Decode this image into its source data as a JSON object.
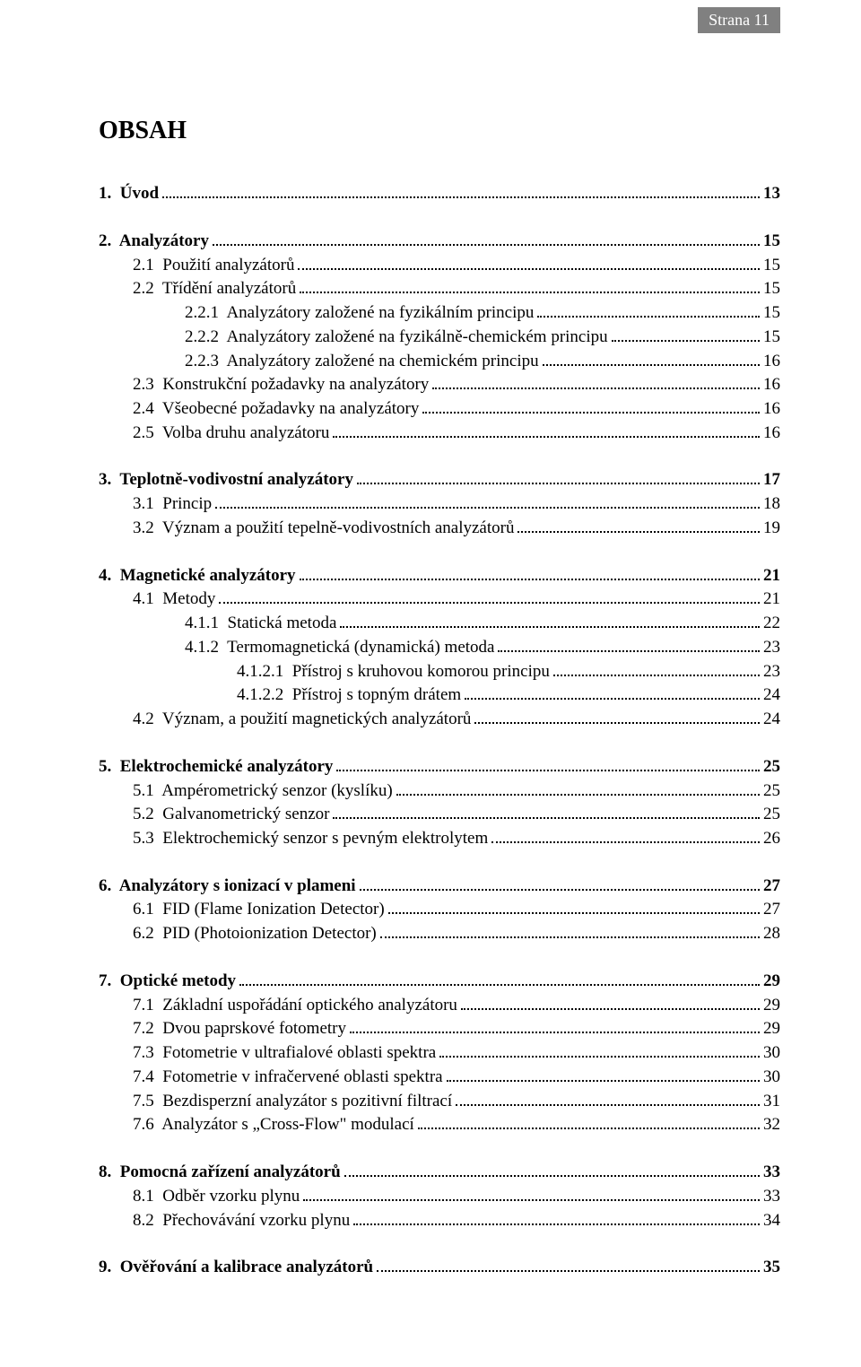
{
  "header": {
    "page_label": "Strana 11"
  },
  "title": "OBSAH",
  "toc": [
    {
      "entries": [
        {
          "num": "1.",
          "text": "Úvod",
          "page": "13",
          "bold": true,
          "indent": 0
        }
      ]
    },
    {
      "entries": [
        {
          "num": "2.",
          "text": "Analyzátory",
          "page": "15",
          "bold": true,
          "indent": 0
        },
        {
          "num": "2.1",
          "text": "Použití analyzátorů",
          "page": "15",
          "bold": false,
          "indent": 1
        },
        {
          "num": "2.2",
          "text": "Třídění analyzátorů",
          "page": "15",
          "bold": false,
          "indent": 1
        },
        {
          "num": "2.2.1",
          "text": "Analyzátory založené na fyzikálním principu",
          "page": "15",
          "bold": false,
          "indent": 2
        },
        {
          "num": "2.2.2",
          "text": "Analyzátory založené na fyzikálně-chemickém principu",
          "page": "15",
          "bold": false,
          "indent": 2
        },
        {
          "num": "2.2.3",
          "text": "Analyzátory založené na chemickém principu",
          "page": "16",
          "bold": false,
          "indent": 2
        },
        {
          "num": "2.3",
          "text": "Konstrukční požadavky na analyzátory",
          "page": "16",
          "bold": false,
          "indent": 1
        },
        {
          "num": "2.4",
          "text": "Všeobecné požadavky na analyzátory",
          "page": "16",
          "bold": false,
          "indent": 1
        },
        {
          "num": "2.5",
          "text": "Volba druhu analyzátoru",
          "page": "16",
          "bold": false,
          "indent": 1
        }
      ]
    },
    {
      "entries": [
        {
          "num": "3.",
          "text": "Teplotně-vodivostní analyzátory",
          "page": "17",
          "bold": true,
          "indent": 0
        },
        {
          "num": "3.1",
          "text": "Princip",
          "page": "18",
          "bold": false,
          "indent": 1
        },
        {
          "num": "3.2",
          "text": "Význam a použití tepelně-vodivostních analyzátorů",
          "page": "19",
          "bold": false,
          "indent": 1
        }
      ]
    },
    {
      "entries": [
        {
          "num": "4.",
          "text": "Magnetické analyzátory",
          "page": "21",
          "bold": true,
          "indent": 0
        },
        {
          "num": "4.1",
          "text": "Metody",
          "page": "21",
          "bold": false,
          "indent": 1
        },
        {
          "num": "4.1.1",
          "text": "Statická metoda",
          "page": "22",
          "bold": false,
          "indent": 2
        },
        {
          "num": "4.1.2",
          "text": "Termomagnetická (dynamická) metoda",
          "page": "23",
          "bold": false,
          "indent": 2
        },
        {
          "num": "4.1.2.1",
          "text": "Přístroj s kruhovou komorou principu",
          "page": "23",
          "bold": false,
          "indent": 3
        },
        {
          "num": "4.1.2.2",
          "text": "Přístroj s topným drátem",
          "page": "24",
          "bold": false,
          "indent": 3
        },
        {
          "num": "4.2",
          "text": "Význam, a použití magnetických analyzátorů",
          "page": "24",
          "bold": false,
          "indent": 1
        }
      ]
    },
    {
      "entries": [
        {
          "num": "5.",
          "text": "Elektrochemické analyzátory",
          "page": "25",
          "bold": true,
          "indent": 0
        },
        {
          "num": "5.1",
          "text": "Ampérometrický senzor (kyslíku)",
          "page": "25",
          "bold": false,
          "indent": 1
        },
        {
          "num": "5.2",
          "text": "Galvanometrický senzor",
          "page": "25",
          "bold": false,
          "indent": 1
        },
        {
          "num": "5.3",
          "text": "Elektrochemický senzor s pevným elektrolytem",
          "page": "26",
          "bold": false,
          "indent": 1
        }
      ]
    },
    {
      "entries": [
        {
          "num": "6.",
          "text": "Analyzátory s ionizací v plameni",
          "page": "27",
          "bold": true,
          "indent": 0
        },
        {
          "num": "6.1",
          "text": "FID (Flame Ionization Detector)",
          "page": "27",
          "bold": false,
          "indent": 1
        },
        {
          "num": "6.2",
          "text": "PID (Photoionization Detector)",
          "page": "28",
          "bold": false,
          "indent": 1
        }
      ]
    },
    {
      "entries": [
        {
          "num": "7.",
          "text": "Optické metody",
          "page": "29",
          "bold": true,
          "indent": 0
        },
        {
          "num": "7.1",
          "text": "Základní uspořádání optického analyzátoru",
          "page": "29",
          "bold": false,
          "indent": 1
        },
        {
          "num": "7.2",
          "text": "Dvou paprskové fotometry",
          "page": "29",
          "bold": false,
          "indent": 1
        },
        {
          "num": "7.3",
          "text": "Fotometrie v ultrafialové oblasti spektra",
          "page": "30",
          "bold": false,
          "indent": 1
        },
        {
          "num": "7.4",
          "text": "Fotometrie v infračervené oblasti spektra",
          "page": "30",
          "bold": false,
          "indent": 1
        },
        {
          "num": "7.5",
          "text": "Bezdisperzní analyzátor s pozitivní filtrací",
          "page": "31",
          "bold": false,
          "indent": 1
        },
        {
          "num": "7.6",
          "text": "Analyzátor s „Cross-Flow\" modulací",
          "page": "32",
          "bold": false,
          "indent": 1
        }
      ]
    },
    {
      "entries": [
        {
          "num": "8.",
          "text": "Pomocná zařízení analyzátorů",
          "page": "33",
          "bold": true,
          "indent": 0
        },
        {
          "num": "8.1",
          "text": "Odběr vzorku plynu",
          "page": "33",
          "bold": false,
          "indent": 1
        },
        {
          "num": "8.2",
          "text": "Přechovávání vzorku plynu",
          "page": "34",
          "bold": false,
          "indent": 1
        }
      ]
    },
    {
      "entries": [
        {
          "num": "9.",
          "text": "Ověřování a kalibrace analyzátorů",
          "page": "35",
          "bold": true,
          "indent": 0
        }
      ]
    }
  ]
}
